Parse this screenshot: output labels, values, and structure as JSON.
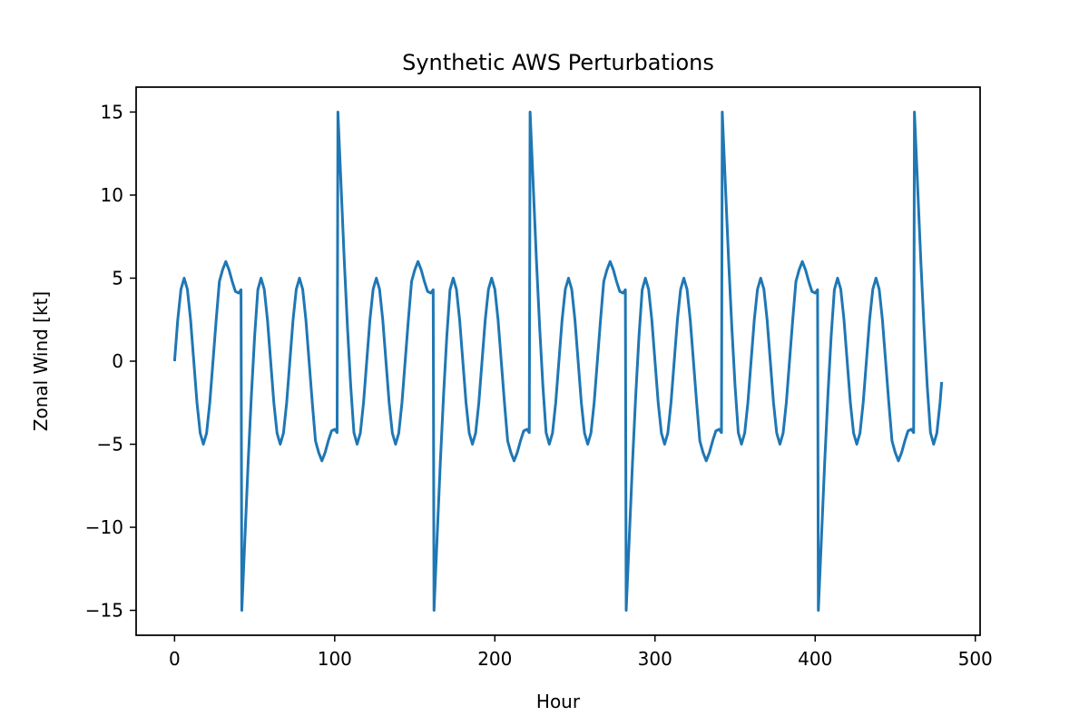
{
  "chart_data": {
    "type": "line",
    "title": "Synthetic AWS Perturbations",
    "xlabel": "Hour",
    "ylabel": "Zonal Wind [kt]",
    "xlim": [
      -24,
      503
    ],
    "ylim": [
      -16.5,
      16.5
    ],
    "xticks": [
      0,
      100,
      200,
      300,
      400,
      500
    ],
    "yticks": [
      -15,
      -10,
      -5,
      0,
      5,
      10,
      15
    ],
    "xtick_labels": [
      "0",
      "100",
      "200",
      "300",
      "400",
      "500"
    ],
    "ytick_labels": [
      "−15",
      "−10",
      "−5",
      "0",
      "5",
      "10",
      "15"
    ],
    "grid": false,
    "color": "#1f77b4",
    "series": [
      {
        "x": [
          0,
          2,
          4,
          6,
          8,
          10,
          12,
          14,
          16,
          18,
          20,
          22,
          24,
          26,
          28,
          30,
          32,
          34,
          36,
          38,
          40,
          41.5,
          42,
          44,
          46,
          48,
          50,
          52,
          54,
          56,
          58,
          60,
          62,
          64,
          66,
          68,
          70,
          72,
          74,
          76,
          78,
          80,
          82,
          84,
          86,
          88,
          90,
          92,
          94,
          96,
          98,
          100,
          101.5,
          102,
          104,
          106,
          108,
          110,
          112,
          114,
          116,
          118,
          120,
          122,
          124,
          126,
          128,
          130,
          132,
          134,
          136,
          138,
          140,
          142,
          144,
          146,
          148,
          150,
          152,
          154,
          156,
          158,
          160,
          161.5,
          162,
          164,
          166,
          168,
          170,
          172,
          174,
          176,
          178,
          180,
          182,
          184,
          186,
          188,
          190,
          192,
          194,
          196,
          198,
          200,
          202,
          204,
          206,
          208,
          210,
          212,
          214,
          216,
          218,
          220,
          221.5,
          222,
          224,
          226,
          228,
          230,
          232,
          234,
          236,
          238,
          240,
          242,
          244,
          246,
          248,
          250,
          252,
          254,
          256,
          258,
          260,
          262,
          264,
          266,
          268,
          270,
          272,
          274,
          276,
          278,
          280,
          281.5,
          282,
          284,
          286,
          288,
          290,
          292,
          294,
          296,
          298,
          300,
          302,
          304,
          306,
          308,
          310,
          312,
          314,
          316,
          318,
          320,
          322,
          324,
          326,
          328,
          330,
          332,
          334,
          336,
          338,
          340,
          341.5,
          342,
          344,
          346,
          348,
          350,
          352,
          354,
          356,
          358,
          360,
          362,
          364,
          366,
          368,
          370,
          372,
          374,
          376,
          378,
          380,
          382,
          384,
          386,
          388,
          390,
          392,
          394,
          396,
          398,
          400,
          401.5,
          402,
          404,
          406,
          408,
          410,
          412,
          414,
          416,
          418,
          420,
          422,
          424,
          426,
          428,
          430,
          432,
          434,
          436,
          438,
          440,
          442,
          444,
          446,
          448,
          450,
          452,
          454,
          456,
          458,
          460,
          461.5,
          462,
          464,
          466,
          468,
          470,
          472,
          474,
          476,
          478,
          479
        ],
        "y": [
          0,
          2.5,
          4.33,
          5,
          4.33,
          2.5,
          0,
          -2.5,
          -4.33,
          -5,
          -4.33,
          -2.5,
          0,
          2.5,
          4.8,
          5.5,
          6,
          5.5,
          4.8,
          4.2,
          4.1,
          4.3,
          -15,
          -10.5,
          -6,
          -2,
          1.5,
          4.3,
          5,
          4.33,
          2.5,
          0,
          -2.5,
          -4.33,
          -5,
          -4.33,
          -2.5,
          0,
          2.5,
          4.33,
          5,
          4.33,
          2.5,
          0,
          -2.5,
          -4.8,
          -5.5,
          -6,
          -5.5,
          -4.8,
          -4.2,
          -4.1,
          -4.3,
          15,
          10.5,
          6,
          2,
          -1.5,
          -4.3,
          -5,
          -4.33,
          -2.5,
          0,
          2.5,
          4.33,
          5,
          4.33,
          2.5,
          0,
          -2.5,
          -4.33,
          -5,
          -4.33,
          -2.5,
          0,
          2.5,
          4.8,
          5.5,
          6,
          5.5,
          4.8,
          4.2,
          4.1,
          4.3,
          -15,
          -10.5,
          -6,
          -2,
          1.5,
          4.3,
          5,
          4.33,
          2.5,
          0,
          -2.5,
          -4.33,
          -5,
          -4.33,
          -2.5,
          0,
          2.5,
          4.33,
          5,
          4.33,
          2.5,
          0,
          -2.5,
          -4.8,
          -5.5,
          -6,
          -5.5,
          -4.8,
          -4.2,
          -4.1,
          -4.3,
          15,
          10.5,
          6,
          2,
          -1.5,
          -4.3,
          -5,
          -4.33,
          -2.5,
          0,
          2.5,
          4.33,
          5,
          4.33,
          2.5,
          0,
          -2.5,
          -4.33,
          -5,
          -4.33,
          -2.5,
          0,
          2.5,
          4.8,
          5.5,
          6,
          5.5,
          4.8,
          4.2,
          4.1,
          4.3,
          -15,
          -10.5,
          -6,
          -2,
          1.5,
          4.3,
          5,
          4.33,
          2.5,
          0,
          -2.5,
          -4.33,
          -5,
          -4.33,
          -2.5,
          0,
          2.5,
          4.33,
          5,
          4.33,
          2.5,
          0,
          -2.5,
          -4.8,
          -5.5,
          -6,
          -5.5,
          -4.8,
          -4.2,
          -4.1,
          -4.3,
          15,
          10.5,
          6,
          2,
          -1.5,
          -4.3,
          -5,
          -4.33,
          -2.5,
          0,
          2.5,
          4.33,
          5,
          4.33,
          2.5,
          0,
          -2.5,
          -4.33,
          -5,
          -4.33,
          -2.5,
          0,
          2.5,
          4.8,
          5.5,
          6,
          5.5,
          4.8,
          4.2,
          4.1,
          4.3,
          -15,
          -10.5,
          -6,
          -2,
          1.5,
          4.3,
          5,
          4.33,
          2.5,
          0,
          -2.5,
          -4.33,
          -5,
          -4.33,
          -2.5,
          0,
          2.5,
          4.33,
          5,
          4.33,
          2.5,
          0,
          -2.5,
          -4.8,
          -5.5,
          -6,
          -5.5,
          -4.8,
          -4.2,
          -4.1,
          -4.3,
          15,
          10.5,
          6,
          2,
          -1.5,
          -4.3,
          -5,
          -4.33,
          -2.5,
          -1.25
        ]
      }
    ]
  }
}
